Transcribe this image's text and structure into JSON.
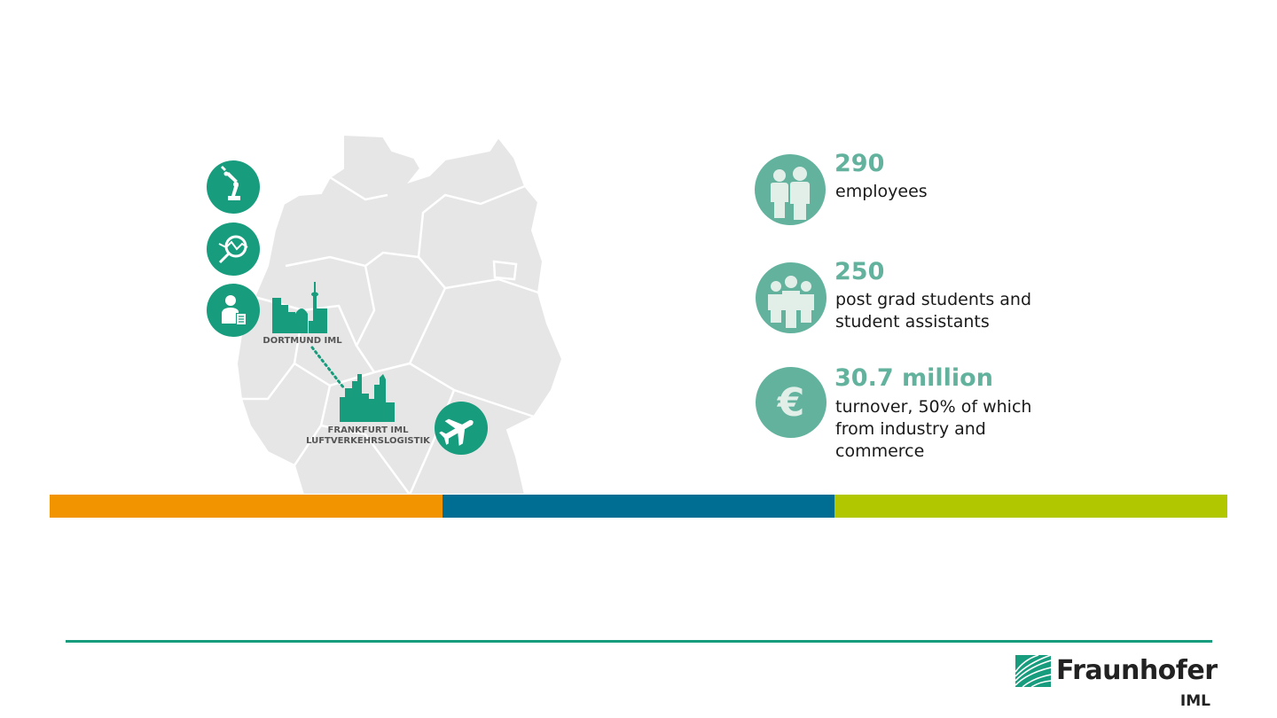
{
  "stats": [
    {
      "value": "290",
      "description": "employees",
      "icon": "two-people-icon"
    },
    {
      "value": "250",
      "description": "post grad students and\nstudent assistants",
      "icon": "three-people-icon"
    },
    {
      "value": "30.7 million",
      "description": "turnover, 50% of which\nfrom industry and\ncommerce",
      "icon": "euro-icon"
    }
  ],
  "locations": {
    "dortmund": "DORTMUND IML",
    "frankfurt": "FRANKFURT IML\nLUFTVERKEHRSLOGISTIK"
  },
  "side_icons": [
    "robot-arm-icon",
    "magnifier-analysis-icon",
    "person-document-icon",
    "airplane-icon"
  ],
  "colors": {
    "accent": "#179c7d",
    "stat_green": "#62b29e",
    "map_gray": "#e6e6e6",
    "orange": "#f29400",
    "blue": "#006e92",
    "lime": "#b1c800"
  },
  "logo": {
    "name": "Fraunhofer",
    "sub": "IML"
  }
}
